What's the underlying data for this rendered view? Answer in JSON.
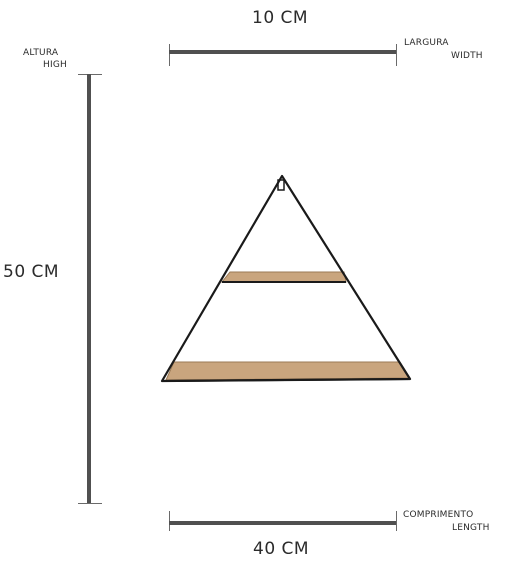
{
  "top": {
    "dimension": "10 CM",
    "label_line1": "LARGURA",
    "label_line2": "WIDTH"
  },
  "left": {
    "dimension": "50 CM",
    "label_line1": "ALTURA",
    "label_line2": "HIGH"
  },
  "bottom": {
    "dimension": "40 CM",
    "label_line1": "COMPRIMENTO",
    "label_line2": "LENGTH"
  },
  "colors": {
    "measure_line": "#505050",
    "frame": "#1a1a1a",
    "wood": "#c9a57e",
    "wood_edge": "#9b7a55"
  }
}
